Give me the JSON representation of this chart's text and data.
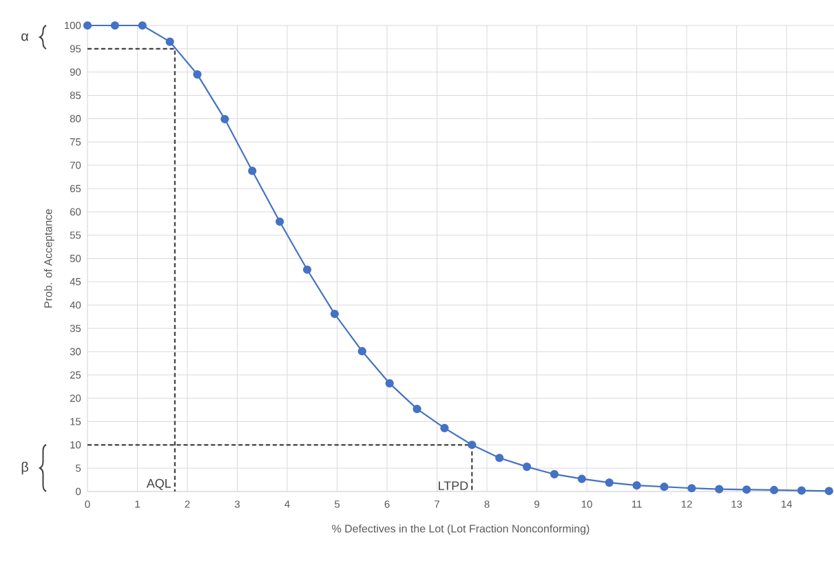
{
  "chart_data": {
    "type": "line",
    "xlabel": "% Defectives in the Lot (Lot Fraction Nonconforming)",
    "ylabel": "Prob. of Acceptance",
    "x": [
      0,
      0.55,
      1.1,
      1.65,
      2.2,
      2.75,
      3.3,
      3.85,
      4.4,
      4.95,
      5.5,
      6.05,
      6.6,
      7.15,
      7.7,
      8.25,
      8.8,
      9.35,
      9.9,
      10.45,
      11.0,
      11.55,
      12.1,
      12.65,
      13.2,
      13.75,
      14.3,
      14.85
    ],
    "series": [
      {
        "color": "#4472c4",
        "marker": "circle",
        "values": [
          100,
          100,
          100,
          96.5,
          89.5,
          79.9,
          68.8,
          57.9,
          47.6,
          38.1,
          30.1,
          23.2,
          17.7,
          13.6,
          10.0,
          7.2,
          5.3,
          3.7,
          2.7,
          1.9,
          1.3,
          1.0,
          0.7,
          0.5,
          0.4,
          0.3,
          0.2,
          0.1
        ]
      },
      {
        "color": "#404040",
        "marker": "none",
        "line_style": "dashed",
        "x": [
          0,
          1.75,
          1.75
        ],
        "values": [
          95,
          95,
          0
        ]
      },
      {
        "color": "#404040",
        "marker": "none",
        "line_style": "dashed",
        "x": [
          0,
          7.7,
          7.7
        ],
        "values": [
          10,
          10,
          0
        ]
      }
    ],
    "xlim": [
      0,
      14.95
    ],
    "ylim": [
      0,
      100
    ],
    "xticks": [
      0,
      1,
      2,
      3,
      4,
      5,
      6,
      7,
      8,
      9,
      10,
      11,
      12,
      13,
      14
    ],
    "yticks": [
      0,
      5,
      10,
      15,
      20,
      25,
      30,
      35,
      40,
      45,
      50,
      55,
      60,
      65,
      70,
      75,
      80,
      85,
      90,
      95,
      100
    ],
    "grid": true,
    "annotations": [
      {
        "text": "AQL",
        "x": 1.75,
        "y": 0
      },
      {
        "text": "LTPD",
        "x": 7.7,
        "y": 0
      },
      "α",
      "β"
    ]
  }
}
